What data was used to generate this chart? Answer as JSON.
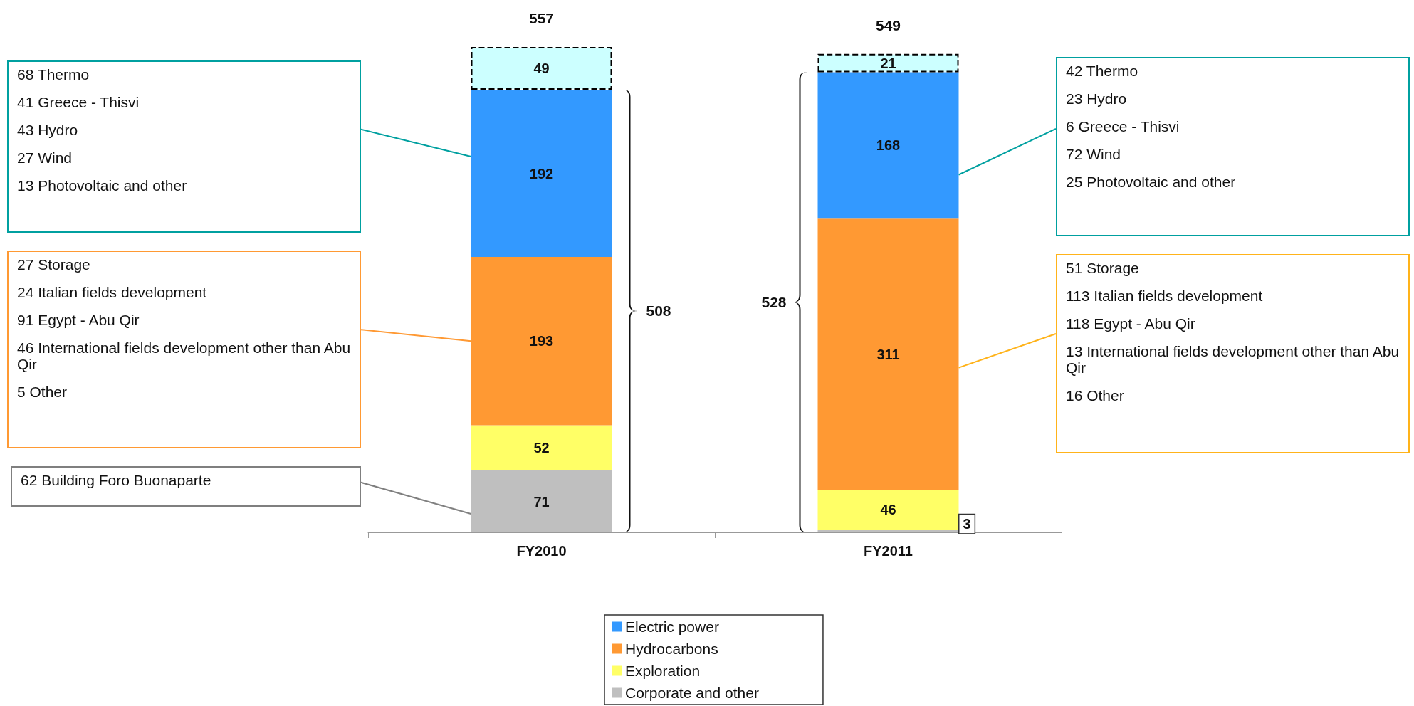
{
  "chart_data": {
    "type": "bar",
    "categories": [
      "FY2010",
      "FY2011"
    ],
    "stacked": true,
    "data_labels": true,
    "totals": [
      "557",
      "549"
    ],
    "legend": "bottom",
    "series": [
      {
        "name": "Corporate and other",
        "color": "#bfbfbf",
        "values": [
          71,
          3
        ]
      },
      {
        "name": "Exploration",
        "color": "#ffff66",
        "values": [
          52,
          46
        ]
      },
      {
        "name": "Hydrocarbons",
        "color": "#ff9933",
        "values": [
          193,
          311
        ]
      },
      {
        "name": "Electric power",
        "color": "#3399ff",
        "values": [
          192,
          168
        ]
      },
      {
        "color": "#ccffff",
        "values": [
          49,
          21
        ],
        "line_style": "dashed"
      }
    ],
    "annotations": [
      "68 Thermo\n41 Greece - Thisvi\n43 Hydro\n27 Wind\n13 Photovoltaic and other",
      "27 Storage\n24 Italian fields development\n91 Egypt - Abu Qir\n46 International fields development other than Abu Qir\n5 Other",
      "62 Building Foro Buonaparte",
      "42 Thermo\n23 Hydro\n6 Greece - Thisvi\n72 Wind\n25 Photovoltaic and other",
      "51 Storage\n113 Italian fields development\n118 Egypt - Abu Qir\n13 International fields development other than Abu Qir\n16 Other",
      "508",
      "528"
    ]
  }
}
